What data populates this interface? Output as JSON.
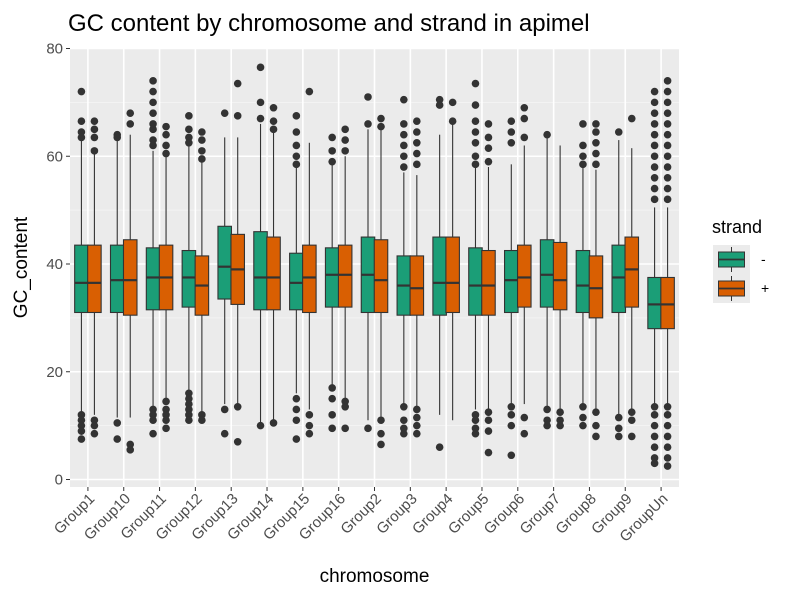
{
  "chart_data": {
    "type": "boxplot",
    "title": "GC content by chromosome and strand in apimel",
    "xlabel": "chromosome",
    "ylabel": "GC_content",
    "ylim": [
      0,
      80
    ],
    "yticks": [
      0,
      20,
      40,
      60,
      80
    ],
    "grid": true,
    "legend": {
      "title": "strand",
      "placement": "right",
      "entries": [
        {
          "label": "-",
          "color": "#1b9e77"
        },
        {
          "label": "+",
          "color": "#d95f02"
        }
      ]
    },
    "categories": [
      "Group1",
      "Group10",
      "Group11",
      "Group12",
      "Group13",
      "Group14",
      "Group15",
      "Group16",
      "Group2",
      "Group3",
      "Group4",
      "Group5",
      "Group6",
      "Group7",
      "Group8",
      "Group9",
      "GroupUn"
    ],
    "series": [
      {
        "name": "-",
        "color": "#1b9e77",
        "boxes": [
          {
            "low": 8.3,
            "q1": 31,
            "median": 36.5,
            "q3": 43.5,
            "high": 63
          },
          {
            "low": 11.5,
            "q1": 31,
            "median": 37,
            "q3": 43.5,
            "high": 63
          },
          {
            "low": 13,
            "q1": 31.5,
            "median": 37.5,
            "q3": 43,
            "high": 61
          },
          {
            "low": 13,
            "q1": 32,
            "median": 37.5,
            "q3": 42.5,
            "high": 62
          },
          {
            "low": 14,
            "q1": 33.5,
            "median": 39.5,
            "q3": 47,
            "high": 63.5
          },
          {
            "low": 10.5,
            "q1": 31.5,
            "median": 37.5,
            "q3": 46,
            "high": 66
          },
          {
            "low": 16,
            "q1": 31.5,
            "median": 36.5,
            "q3": 42,
            "high": 58.5
          },
          {
            "low": 17,
            "q1": 32,
            "median": 38,
            "q3": 43,
            "high": 59
          },
          {
            "low": 11,
            "q1": 31,
            "median": 38,
            "q3": 45,
            "high": 65
          },
          {
            "low": 14,
            "q1": 30.5,
            "median": 36,
            "q3": 41.5,
            "high": 57
          },
          {
            "low": 12,
            "q1": 30.5,
            "median": 36.5,
            "q3": 45,
            "high": 64
          },
          {
            "low": 13,
            "q1": 30.5,
            "median": 36,
            "q3": 43,
            "high": 59
          },
          {
            "low": 14,
            "q1": 31,
            "median": 37,
            "q3": 42.5,
            "high": 58.5
          },
          {
            "low": 13,
            "q1": 32,
            "median": 38,
            "q3": 44.5,
            "high": 63.5
          },
          {
            "low": 13.5,
            "q1": 31,
            "median": 36,
            "q3": 42.5,
            "high": 58.5
          },
          {
            "low": 12,
            "q1": 31,
            "median": 37.5,
            "q3": 43.5,
            "high": 63
          },
          {
            "low": 14,
            "q1": 28,
            "median": 32.5,
            "q3": 37.5,
            "high": 50.5
          }
        ]
      },
      {
        "name": "+",
        "color": "#d95f02",
        "boxes": [
          {
            "low": 12,
            "q1": 31,
            "median": 36.5,
            "q3": 43.5,
            "high": 61
          },
          {
            "low": 11.5,
            "q1": 30.5,
            "median": 37,
            "q3": 44.5,
            "high": 64
          },
          {
            "low": 14.5,
            "q1": 31.5,
            "median": 37.5,
            "q3": 43.5,
            "high": 60
          },
          {
            "low": 12,
            "q1": 30.5,
            "median": 36,
            "q3": 41.5,
            "high": 59
          },
          {
            "low": 14,
            "q1": 32.5,
            "median": 39,
            "q3": 45.5,
            "high": 63.5
          },
          {
            "low": 10.5,
            "q1": 31.5,
            "median": 37.5,
            "q3": 45,
            "high": 65
          },
          {
            "low": 13,
            "q1": 31,
            "median": 37.5,
            "q3": 43.5,
            "high": 62.5
          },
          {
            "low": 15,
            "q1": 32,
            "median": 38,
            "q3": 43.5,
            "high": 60
          },
          {
            "low": 11,
            "q1": 31,
            "median": 37,
            "q3": 44.5,
            "high": 65
          },
          {
            "low": 13,
            "q1": 30.5,
            "median": 35.5,
            "q3": 41.5,
            "high": 56.5
          },
          {
            "low": 11,
            "q1": 31,
            "median": 36.5,
            "q3": 45,
            "high": 66
          },
          {
            "low": 13,
            "q1": 30.5,
            "median": 36,
            "q3": 42.5,
            "high": 58
          },
          {
            "low": 14,
            "q1": 32,
            "median": 37.5,
            "q3": 43.5,
            "high": 62
          },
          {
            "low": 12,
            "q1": 31.5,
            "median": 37,
            "q3": 44,
            "high": 62
          },
          {
            "low": 12.5,
            "q1": 30,
            "median": 35.5,
            "q3": 41.5,
            "high": 57.5
          },
          {
            "low": 12.5,
            "q1": 32,
            "median": 39,
            "q3": 45,
            "high": 61.5
          },
          {
            "low": 14,
            "q1": 28,
            "median": 32.5,
            "q3": 37.5,
            "high": 50.5
          }
        ]
      }
    ],
    "outliers": {
      "-": [
        [
          72,
          66.5,
          64.5,
          63.5,
          12,
          11,
          10,
          9,
          7.5
        ],
        [
          64,
          63.5,
          10.5,
          7.5
        ],
        [
          74,
          72,
          70,
          68,
          66,
          65,
          63,
          62,
          13,
          12,
          11,
          8.5
        ],
        [
          67.5,
          65,
          63.5,
          62.5,
          16,
          15,
          14,
          13,
          12,
          11
        ],
        [
          68,
          13,
          8.5
        ],
        [
          76.5,
          70,
          67,
          10
        ],
        [
          67.5,
          64.5,
          62,
          60,
          58.5,
          15,
          13,
          11,
          7.5
        ],
        [
          63.5,
          61,
          59,
          17,
          15,
          12,
          9.5
        ],
        [
          71,
          66,
          9.5
        ],
        [
          70.5,
          66,
          64,
          62,
          60,
          58,
          13.5,
          11,
          9.5,
          8.5
        ],
        [
          70.5,
          69.5,
          6
        ],
        [
          73.5,
          69.5,
          66.5,
          64.5,
          62.5,
          60,
          58.5,
          12,
          11,
          9.5,
          8.5
        ],
        [
          66.5,
          64.5,
          62.5,
          13.5,
          12,
          10,
          4.5
        ],
        [
          64,
          13,
          11,
          10
        ],
        [
          66,
          62,
          60,
          58.5,
          13.5,
          11.5,
          10
        ],
        [
          64.5,
          11.5,
          9.5,
          8
        ],
        [
          72,
          70,
          68,
          66,
          64,
          62,
          60,
          58,
          56,
          54,
          52,
          13.5,
          12,
          10,
          8,
          6,
          4,
          3
        ]
      ],
      "+": [
        [
          66.5,
          65,
          63.5,
          61,
          11,
          10,
          8.5
        ],
        [
          68,
          66,
          6.5,
          5.5
        ],
        [
          65.5,
          64,
          62,
          60.5,
          14.5,
          13,
          12,
          11,
          9.5
        ],
        [
          64.5,
          63,
          61,
          59.5,
          12,
          11
        ],
        [
          73.5,
          67.5,
          13.5,
          7
        ],
        [
          69,
          66.5,
          65,
          10.5
        ],
        [
          72,
          12,
          10,
          8.5
        ],
        [
          65,
          63,
          61,
          14.5,
          13.5,
          9.5
        ],
        [
          67,
          65.5,
          11,
          8.5,
          6.5
        ],
        [
          66.5,
          64.5,
          62.5,
          60.5,
          58.5,
          13,
          11.5,
          10,
          8.5
        ],
        [
          70,
          66.5
        ],
        [
          66,
          63.5,
          61.5,
          59,
          12.5,
          11,
          9,
          5
        ],
        [
          69,
          67,
          63.5,
          11.5,
          8.5
        ],
        [
          12.5,
          11,
          10
        ],
        [
          66,
          64.5,
          62.5,
          60.5,
          58.5,
          12.5,
          10,
          8
        ],
        [
          67,
          12.5,
          11,
          8
        ],
        [
          74,
          72,
          70,
          68,
          66,
          64,
          62,
          60,
          58,
          56,
          54,
          52,
          13.5,
          12,
          10,
          8,
          6,
          4,
          2.5
        ]
      ]
    }
  }
}
